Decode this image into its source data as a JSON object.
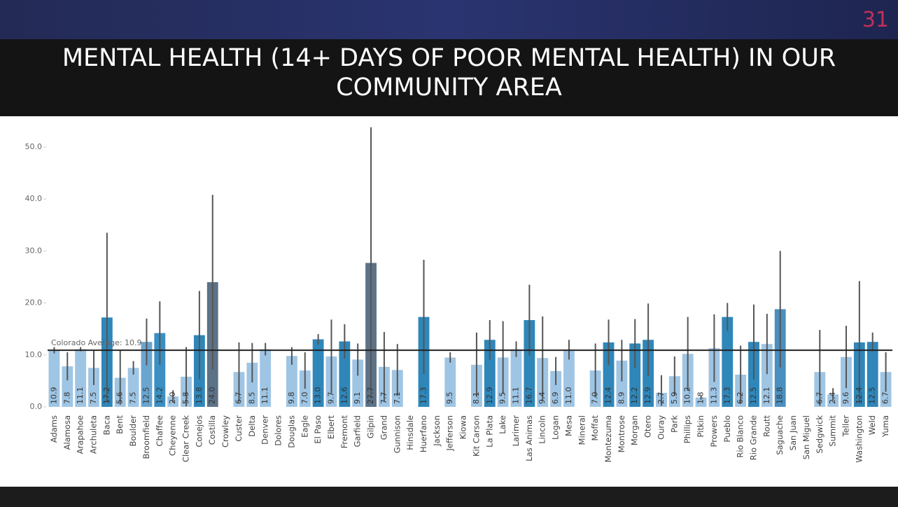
{
  "page_number": "31",
  "chart_data": {
    "type": "bar",
    "title": "MENTAL HEALTH (14+ DAYS OF POOR MENTAL HEALTH)  IN OUR COMMUNITY AREA",
    "categories": [
      "Adams",
      "Alamosa",
      "Arapahoe",
      "Archuleta",
      "Baca",
      "Bent",
      "Boulder",
      "Broomfield",
      "Chaffee",
      "Cheyenne",
      "Clear Creek",
      "Conejos",
      "Costilla",
      "Crowley",
      "Custer",
      "Delta",
      "Denver",
      "Dolores",
      "Douglas",
      "Eagle",
      "El Paso",
      "Elbert",
      "Fremont",
      "Garfield",
      "Gilpin",
      "Grand",
      "Gunnison",
      "Hinsdale",
      "Huerfano",
      "Jackson",
      "Jefferson",
      "Kiowa",
      "Kit Carson",
      "La Plata",
      "Lake",
      "Larimer",
      "Las Animas",
      "Lincoln",
      "Logan",
      "Mesa",
      "Mineral",
      "Moffat",
      "Montezuma",
      "Montrose",
      "Morgan",
      "Otero",
      "Ouray",
      "Park",
      "Phillips",
      "Pitkin",
      "Prowers",
      "Pueblo",
      "Rio Blanco",
      "Rio Grande",
      "Routt",
      "Saguache",
      "San Juan",
      "San Miguel",
      "Sedgwick",
      "Summit",
      "Teller",
      "Washington",
      "Weld",
      "Yuma"
    ],
    "values": [
      10.9,
      7.8,
      11.1,
      7.5,
      17.2,
      5.6,
      7.5,
      12.5,
      14.2,
      2.0,
      5.8,
      13.8,
      24.0,
      null,
      6.7,
      8.5,
      11.1,
      null,
      9.8,
      7.0,
      13.0,
      9.7,
      12.6,
      9.1,
      27.7,
      7.7,
      7.1,
      null,
      17.3,
      null,
      9.5,
      null,
      8.1,
      12.9,
      9.5,
      11.1,
      16.7,
      9.4,
      6.9,
      11.0,
      null,
      7.0,
      12.4,
      8.9,
      12.2,
      12.9,
      2.7,
      5.9,
      10.2,
      1.8,
      11.3,
      17.3,
      6.2,
      12.5,
      12.1,
      18.8,
      null,
      null,
      6.7,
      2.4,
      9.6,
      12.4,
      12.5,
      6.7
    ],
    "value_labels": [
      "10.9",
      "7.8",
      "11.1",
      "7.5",
      "17.2",
      "5.6",
      "7.5",
      "12.5",
      "14.2",
      "2.0",
      "5.8",
      "13.8",
      "24.0",
      null,
      "6.7",
      "8.5",
      "11.1",
      null,
      "9.8",
      "7.0",
      "13.0",
      "9.7",
      "12.6",
      "9.1",
      "27.7",
      "7.7",
      "7.1",
      null,
      "17.3",
      null,
      "9.5",
      null,
      "8.1",
      "12.9",
      "9.5",
      "11.1",
      "16.7",
      "9.4",
      "6.9",
      "11.0",
      null,
      "7.0",
      "12.4",
      "8.9",
      "12.2",
      "12.9",
      "2.7",
      "5.9",
      "10.2",
      "1.8",
      "11.3",
      "17.3",
      "6.2",
      "12.5",
      "12.1",
      "18.8",
      null,
      null,
      "6.7",
      "2.4",
      "9.6",
      "12.4",
      "12.5",
      "6.7"
    ],
    "ci_low": [
      10.3,
      5.1,
      10.7,
      4.2,
      0.9,
      0.4,
      6.2,
      8,
      8.1,
      0.8,
      0.1,
      5.3,
      7.2,
      null,
      1.0,
      4.7,
      9.9,
      null,
      8.1,
      3.5,
      12,
      2.6,
      9.3,
      6.0,
      1.6,
      1.0,
      2.1,
      null,
      6.3,
      null,
      8.5,
      null,
      1.9,
      9.1,
      2.5,
      9.6,
      9.9,
      1.4,
      4.2,
      9.1,
      null,
      1.8,
      8.0,
      4.9,
      7.5,
      5.9,
      0.2,
      2.1,
      3.1,
      1.4,
      4.8,
      14.6,
      0.6,
      5.3,
      6.3,
      7.6,
      null,
      null,
      0.2,
      1.2,
      3.6,
      0.6,
      10.7,
      2.9
    ],
    "ci_high": [
      11.5,
      10.5,
      11.5,
      10.8,
      33.5,
      10.8,
      8.8,
      17,
      20.3,
      3.2,
      11.5,
      22.3,
      40.8,
      null,
      12.4,
      12.3,
      12.3,
      null,
      11.5,
      10.5,
      14,
      16.8,
      15.9,
      12.2,
      53.8,
      14.4,
      12.1,
      null,
      28.3,
      null,
      10.5,
      null,
      14.3,
      16.7,
      16.5,
      12.6,
      23.5,
      17.4,
      9.6,
      12.9,
      null,
      12.2,
      16.8,
      12.9,
      16.9,
      19.9,
      6.1,
      9.7,
      17.3,
      2.2,
      17.8,
      20,
      11.8,
      19.7,
      17.9,
      30,
      null,
      null,
      14.8,
      3.6,
      15.6,
      24.2,
      14.3,
      10.5
    ],
    "colors": [
      "#9fc5e4",
      "#9fc5e4",
      "#9fc5e4",
      "#9fc5e4",
      "#2f86b9",
      "#9fc5e4",
      "#9fc5e4",
      "#6aa5cf",
      "#3b8fc2",
      "#9fc5e4",
      "#9fc5e4",
      "#2f86b9",
      "#5c7287",
      null,
      "#9fc5e4",
      "#9fc5e4",
      "#9fc5e4",
      null,
      "#9fc5e4",
      "#9fc5e4",
      "#2f86b9",
      "#9fc5e4",
      "#2f86b9",
      "#9fc5e4",
      "#5c7287",
      "#9fc5e4",
      "#9fc5e4",
      null,
      "#2f86b9",
      null,
      "#9fc5e4",
      null,
      "#9fc5e4",
      "#2f86b9",
      "#9fc5e4",
      "#9fc5e4",
      "#2f86b9",
      "#9fc5e4",
      "#9fc5e4",
      "#9fc5e4",
      null,
      "#9fc5e4",
      "#2f86b9",
      "#9fc5e4",
      "#2f86b9",
      "#2f86b9",
      "#9fc5e4",
      "#9fc5e4",
      "#9fc5e4",
      "#9fc5e4",
      "#9fc5e4",
      "#2f86b9",
      "#9fc5e4",
      "#2f86b9",
      "#9fc5e4",
      "#4a8fbf",
      null,
      null,
      "#9fc5e4",
      "#9fc5e4",
      "#9fc5e4",
      "#2f86b9",
      "#2f86b9",
      "#9fc5e4"
    ],
    "error_color": "#555555",
    "reference_line": {
      "label": "Colorado Average: 10.9",
      "value": 10.9
    },
    "ylim": [
      0,
      50
    ],
    "yticks": [
      {
        "value": 0,
        "label": "0.0"
      },
      {
        "value": 10,
        "label": "10.0"
      },
      {
        "value": 20,
        "label": "20.0"
      },
      {
        "value": 30,
        "label": "30.0"
      },
      {
        "value": 40,
        "label": "40.0"
      },
      {
        "value": 50,
        "label": "50.0"
      }
    ]
  }
}
